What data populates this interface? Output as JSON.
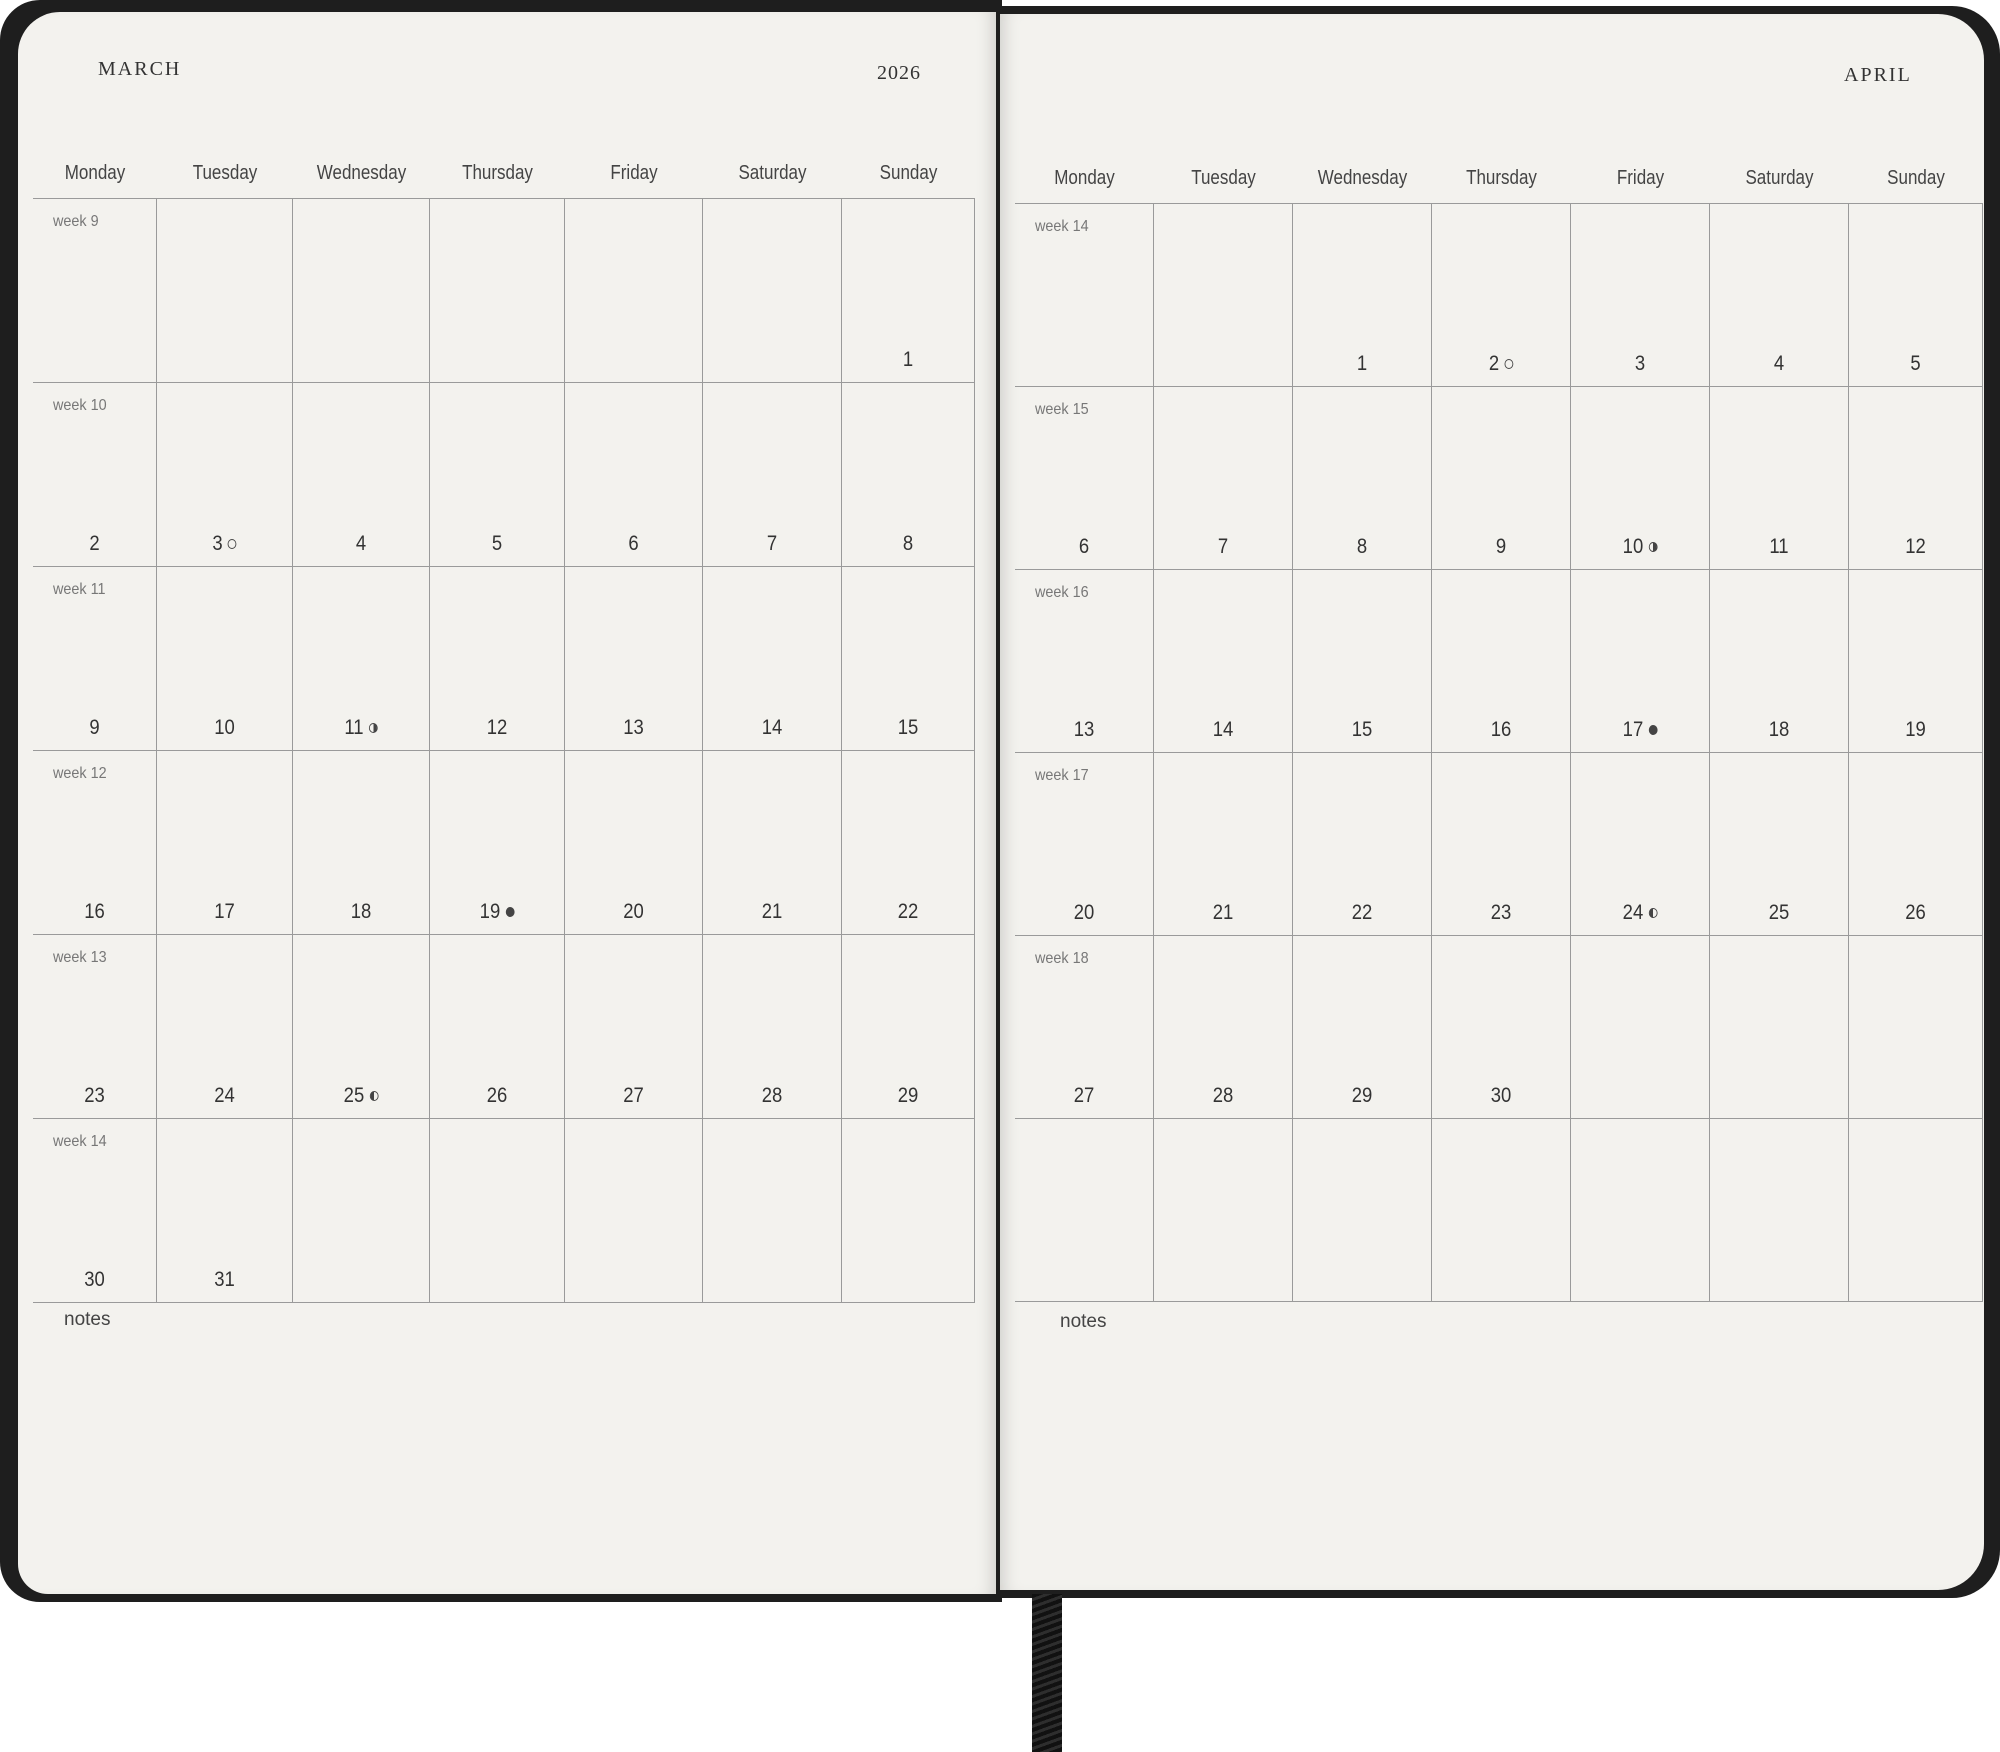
{
  "day_headers": [
    "Monday",
    "Tuesday",
    "Wednesday",
    "Thursday",
    "Friday",
    "Saturday",
    "Sunday"
  ],
  "left_page": {
    "month": "MARCH",
    "year": "2026",
    "notes_label": "notes",
    "weeks": [
      {
        "label": "week 9",
        "days": [
          null,
          null,
          null,
          null,
          null,
          null,
          "1"
        ]
      },
      {
        "label": "week 10",
        "days": [
          "2",
          "3",
          "4",
          "5",
          "6",
          "7",
          "8"
        ]
      },
      {
        "label": "week 11",
        "days": [
          "9",
          "10",
          "11",
          "12",
          "13",
          "14",
          "15"
        ]
      },
      {
        "label": "week 12",
        "days": [
          "16",
          "17",
          "18",
          "19",
          "20",
          "21",
          "22"
        ]
      },
      {
        "label": "week 13",
        "days": [
          "23",
          "24",
          "25",
          "26",
          "27",
          "28",
          "29"
        ]
      },
      {
        "label": "week 14",
        "days": [
          "30",
          "31",
          null,
          null,
          null,
          null,
          null
        ]
      }
    ],
    "moon_phases": {
      "3": "full-moon",
      "11": "last-quarter",
      "19": "new-moon",
      "25": "first-quarter"
    }
  },
  "right_page": {
    "month": "APRIL",
    "notes_label": "notes",
    "weeks": [
      {
        "label": "week 14",
        "days": [
          null,
          null,
          "1",
          "2",
          "3",
          "4",
          "5"
        ]
      },
      {
        "label": "week 15",
        "days": [
          "6",
          "7",
          "8",
          "9",
          "10",
          "11",
          "12"
        ]
      },
      {
        "label": "week 16",
        "days": [
          "13",
          "14",
          "15",
          "16",
          "17",
          "18",
          "19"
        ]
      },
      {
        "label": "week 17",
        "days": [
          "20",
          "21",
          "22",
          "23",
          "24",
          "25",
          "26"
        ]
      },
      {
        "label": "week 18",
        "days": [
          "27",
          "28",
          "29",
          "30",
          null,
          null,
          null
        ]
      },
      {
        "label": "",
        "days": [
          null,
          null,
          null,
          null,
          null,
          null,
          null
        ]
      }
    ],
    "moon_phases": {
      "2": "full-moon",
      "10": "last-quarter",
      "17": "new-moon",
      "24": "first-quarter"
    }
  },
  "colors": {
    "cover": "#1e1e1e",
    "paper": "#f3f2ee",
    "grid_line": "#9a9a9a",
    "text": "#333333"
  }
}
